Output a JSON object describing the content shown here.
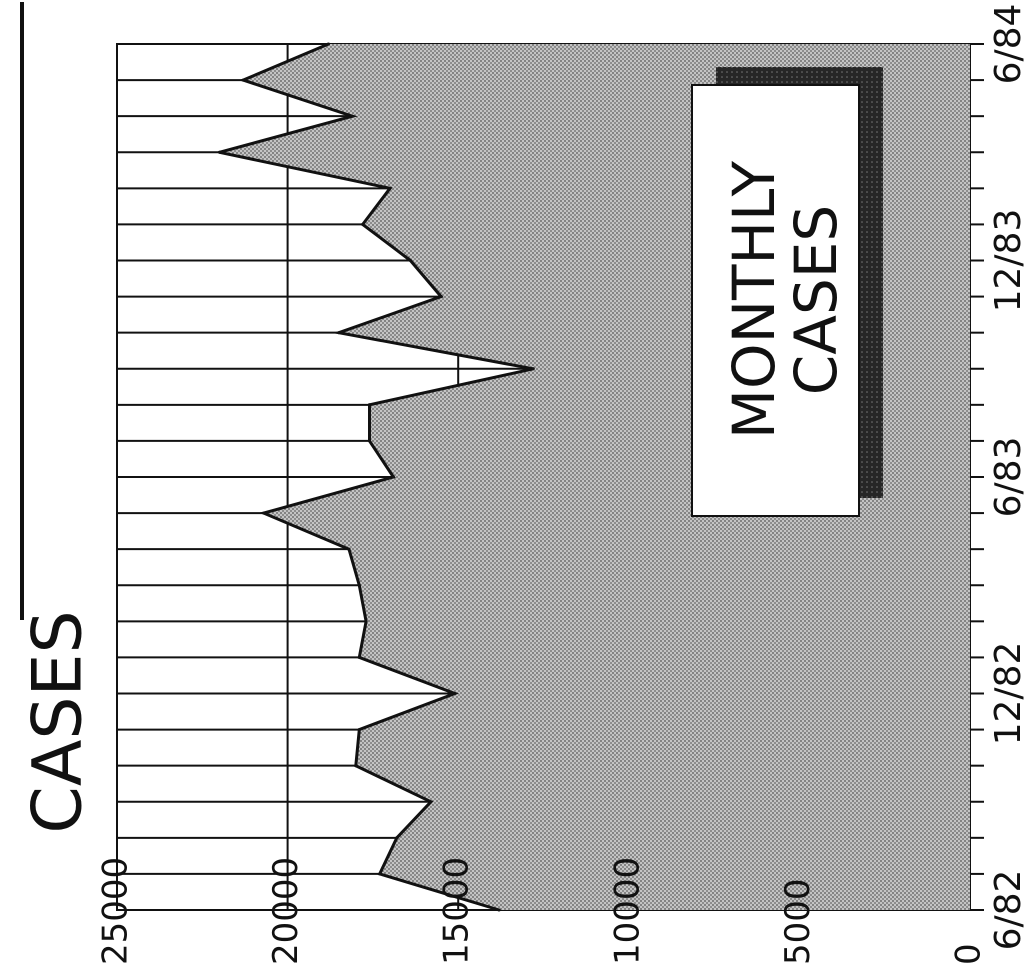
{
  "header": {
    "title": "CASES"
  },
  "legend": {
    "line1": "MONTHLY",
    "line2": "CASES"
  },
  "chart_data": {
    "type": "area",
    "title": "CASES",
    "xlabel": "",
    "ylabel": "",
    "x_tick_labels": [
      "6/82",
      "12/82",
      "6/83",
      "12/83",
      "6/84"
    ],
    "y_tick_labels": [
      "0",
      "5000",
      "10000",
      "15000",
      "20000",
      "25000"
    ],
    "ylim": [
      0,
      25000
    ],
    "grid": true,
    "legend_position": "top-right",
    "series": [
      {
        "name": "MONTHLY CASES",
        "x": [
          "6/82",
          "7/82",
          "8/82",
          "9/82",
          "10/82",
          "11/82",
          "12/82",
          "1/83",
          "2/83",
          "3/83",
          "4/83",
          "5/83",
          "6/83",
          "7/83",
          "8/83",
          "9/83",
          "10/83",
          "11/83",
          "12/83",
          "1/84",
          "2/84",
          "3/84",
          "4/84",
          "5/84",
          "6/84"
        ],
        "values": [
          13800,
          17300,
          16800,
          15800,
          18000,
          17900,
          15100,
          17900,
          17700,
          17900,
          18200,
          20700,
          16900,
          17600,
          17600,
          12800,
          18500,
          15500,
          16400,
          17800,
          17000,
          22000,
          18100,
          21300,
          18800
        ]
      }
    ],
    "colors": {
      "area_fill": "#9a9a9a",
      "line": "#111111",
      "legend_shadow": "#222222",
      "background": "#ffffff"
    }
  }
}
